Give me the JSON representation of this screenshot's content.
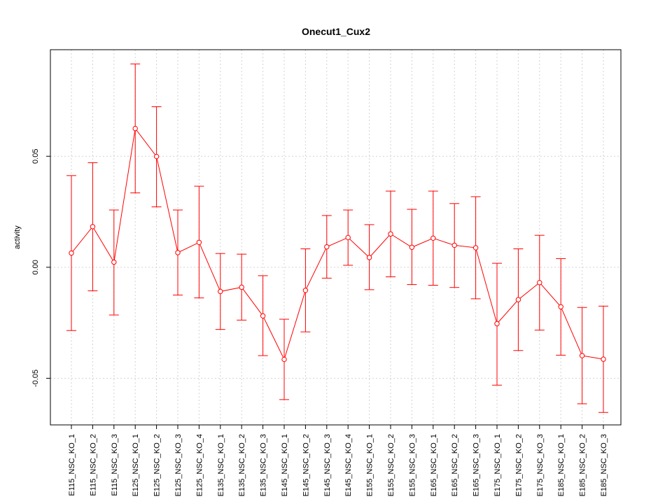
{
  "chart_data": {
    "type": "line",
    "title": "Onecut1_Cux2",
    "xlabel": "",
    "ylabel": "activity",
    "ylim": [
      -0.071,
      0.098
    ],
    "yticks": [
      -0.05,
      0.0,
      0.05
    ],
    "ytick_labels": [
      "-0.05",
      "0.00",
      "0.05"
    ],
    "grid": true,
    "legend": "none",
    "colors": {
      "series": "#ff0000",
      "grid": "#d3d3d3",
      "axis": "#000000"
    },
    "categories": [
      "E115_NSC_KO_1",
      "E115_NSC_KO_2",
      "E115_NSC_KO_3",
      "E125_NSC_KO_1",
      "E125_NSC_KO_2",
      "E125_NSC_KO_3",
      "E125_NSC_KO_4",
      "E135_NSC_KO_1",
      "E135_NSC_KO_2",
      "E135_NSC_KO_3",
      "E145_NSC_KO_1",
      "E145_NSC_KO_2",
      "E145_NSC_KO_3",
      "E145_NSC_KO_4",
      "E155_NSC_KO_1",
      "E155_NSC_KO_2",
      "E155_NSC_KO_3",
      "E165_NSC_KO_1",
      "E165_NSC_KO_2",
      "E165_NSC_KO_3",
      "E175_NSC_KO_1",
      "E175_NSC_KO_2",
      "E175_NSC_KO_3",
      "E185_NSC_KO_1",
      "E185_NSC_KO_2",
      "E185_NSC_KO_3"
    ],
    "values": [
      0.0064,
      0.0183,
      0.0023,
      0.0625,
      0.0499,
      0.0066,
      0.0112,
      -0.0109,
      -0.009,
      -0.0219,
      -0.0415,
      -0.0104,
      0.0092,
      0.0134,
      0.0044,
      0.015,
      0.009,
      0.0131,
      0.0099,
      0.0088,
      -0.0254,
      -0.0146,
      -0.0069,
      -0.0178,
      -0.0398,
      -0.0414
    ],
    "upper": [
      0.0413,
      0.0471,
      0.0258,
      0.0916,
      0.0723,
      0.0258,
      0.0365,
      0.0062,
      0.0059,
      -0.0038,
      -0.0234,
      0.0083,
      0.0233,
      0.0258,
      0.0192,
      0.0343,
      0.0261,
      0.0343,
      0.0287,
      0.0318,
      0.0018,
      0.0083,
      0.0144,
      0.0039,
      -0.0181,
      -0.0175
    ],
    "lower": [
      -0.0285,
      -0.0106,
      -0.0215,
      0.0335,
      0.0272,
      -0.0125,
      -0.0138,
      -0.028,
      -0.0238,
      -0.0398,
      -0.0596,
      -0.0291,
      -0.0049,
      0.0009,
      -0.0101,
      -0.0043,
      -0.0078,
      -0.0081,
      -0.0091,
      -0.0142,
      -0.0531,
      -0.0375,
      -0.0283,
      -0.0396,
      -0.0615,
      -0.0654
    ]
  }
}
